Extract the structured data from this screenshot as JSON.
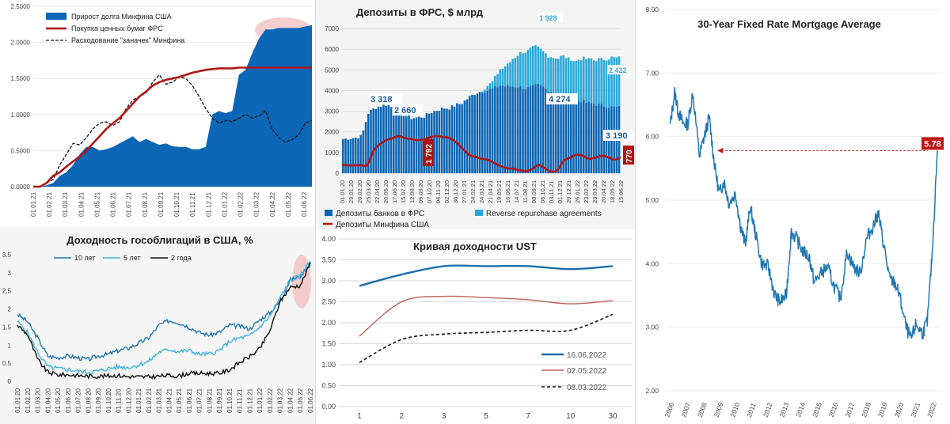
{
  "colors": {
    "blue_dark": "#0b66b5",
    "red": "#b01515",
    "light_blue": "#29a8dc",
    "navy": "#1a5e96",
    "yield_10y": "#1f77b4",
    "yield_5y": "#3fb4df",
    "ust_now": "#1b6fa8",
    "ust_may": "#c0605a"
  },
  "chart_data": [
    {
      "id": "fed_debt",
      "type": "area",
      "title": "",
      "yticks": [
        "0.0000",
        "0.5000",
        "1.0000",
        "1.5000",
        "2.0000",
        "2.5000"
      ],
      "ylim": [
        0,
        2.5
      ],
      "xticks": [
        "01.01.21",
        "01.02.21",
        "01.03.21",
        "01.04.21",
        "01.05.21",
        "01.06.21",
        "01.07.21",
        "01.08.21",
        "01.09.21",
        "01.10.21",
        "01.11.21",
        "01.12.21",
        "01.01.22",
        "01.02.22",
        "01.03.22",
        "01.04.22",
        "01.05.22",
        "01.06.22"
      ],
      "legend": [
        "Прирост долга Минфина США",
        "Покупка ценных бумаг ФРС",
        "Расходование \"заначек\" Минфина"
      ],
      "series": [
        {
          "name": "Прирост долга Минфина США",
          "style": "area",
          "values": [
            0,
            0,
            0.02,
            0.05,
            0.15,
            0.2,
            0.3,
            0.45,
            0.55,
            0.55,
            0.5,
            0.52,
            0.55,
            0.6,
            0.65,
            0.7,
            0.62,
            0.66,
            0.62,
            0.58,
            0.6,
            0.56,
            0.55,
            0.55,
            0.52,
            0.52,
            0.55,
            1.0,
            1.05,
            1.02,
            1.05,
            1.55,
            1.62,
            1.85,
            2.05,
            2.18,
            2.18,
            2.2,
            2.2,
            2.2,
            2.2,
            2.22,
            2.24
          ]
        },
        {
          "name": "Покупка ценных бумаг ФРС",
          "style": "line",
          "values": [
            0,
            0,
            0.05,
            0.15,
            0.2,
            0.28,
            0.35,
            0.42,
            0.5,
            0.6,
            0.7,
            0.8,
            0.88,
            0.95,
            1.05,
            1.15,
            1.25,
            1.32,
            1.4,
            1.45,
            1.48,
            1.5,
            1.52,
            1.55,
            1.58,
            1.6,
            1.62,
            1.63,
            1.64,
            1.64,
            1.64,
            1.65,
            1.65,
            1.65,
            1.65,
            1.65,
            1.65,
            1.65,
            1.65,
            1.65,
            1.65,
            1.65,
            1.65
          ]
        },
        {
          "name": "Расходование \"заначек\" Минфина",
          "style": "dashed",
          "values": [
            0,
            0,
            0.05,
            0.1,
            0.3,
            0.45,
            0.6,
            0.58,
            0.68,
            0.8,
            0.88,
            0.9,
            0.85,
            0.9,
            1.08,
            1.2,
            1.25,
            1.3,
            1.45,
            1.55,
            1.42,
            1.45,
            1.52,
            1.5,
            1.4,
            1.25,
            1.08,
            0.95,
            0.88,
            0.92,
            0.9,
            0.95,
            1.0,
            0.95,
            0.98,
            1.05,
            0.8,
            0.68,
            0.62,
            0.65,
            0.72,
            0.88,
            0.92
          ]
        }
      ]
    },
    {
      "id": "fed_deposits",
      "type": "bar",
      "title": "Депозиты в ФРС, $ млрд",
      "yticks": [
        "0",
        "1000",
        "2000",
        "3000",
        "4000",
        "5000",
        "6000",
        "7000"
      ],
      "ylim": [
        0,
        7000
      ],
      "xticks": [
        "01.01.20",
        "29.01.20",
        "26.02.20",
        "25.03.20",
        "22.04.20",
        "20.05.20",
        "17.06.20",
        "15.07.20",
        "12.08.20",
        "09.09.20",
        "07.10.20",
        "04.11.20",
        "02.12.20",
        "30.12.20",
        "27.01.21",
        "24.02.21",
        "24.03.21",
        "21.04.21",
        "19.05.21",
        "16.06.21",
        "14.07.21",
        "11.08.21",
        "08.09.21",
        "06.10.21",
        "03.11.21",
        "01.12.21",
        "29.12.21",
        "26.01.22",
        "23.02.22",
        "23.03.22",
        "20.04.22",
        "18.05.22",
        "15.06.22"
      ],
      "labels": {
        "bank_early": "3 318",
        "bank_mid": "2 660",
        "bank_late": "4 274",
        "rrp_peak": "1 928",
        "rrp_last": "2 422",
        "bank_last": "3 190",
        "tga_mid": "1 792",
        "tga_last": "770"
      },
      "legend": [
        "Депозиты банков в ФРС",
        "Reverse repurchase agreements",
        "Депозиты Минфина США"
      ],
      "series": [
        {
          "name": "Депозиты банков в ФРС",
          "values": [
            1650,
            1700,
            1720,
            1800,
            2900,
            3150,
            3250,
            3318,
            3150,
            2950,
            2780,
            2660,
            2700,
            2750,
            2950,
            3050,
            3150,
            3150,
            3300,
            3400,
            3650,
            3850,
            3950,
            4000,
            4100,
            4250,
            4200,
            4200,
            4200,
            4100,
            4150,
            4274,
            4150,
            3950,
            3800,
            3850,
            3700,
            3450,
            3500,
            3400,
            3350,
            3300,
            3250,
            3200,
            3190
          ]
        },
        {
          "name": "Reverse repurchase agreements",
          "values": [
            0,
            0,
            0,
            0,
            0,
            0,
            0,
            0,
            0,
            0,
            0,
            0,
            0,
            0,
            0,
            0,
            0,
            0,
            0,
            0,
            0,
            10,
            50,
            200,
            400,
            750,
            1000,
            1300,
            1600,
            1750,
            1928,
            1800,
            1700,
            1700,
            1750,
            1800,
            1850,
            1950,
            2050,
            2100,
            2150,
            2200,
            2300,
            2400,
            2422
          ]
        },
        {
          "name": "Депозиты Минфина США",
          "values": [
            400,
            380,
            380,
            390,
            400,
            1100,
            1400,
            1600,
            1700,
            1792,
            1700,
            1650,
            1600,
            1650,
            1750,
            1800,
            1750,
            1700,
            1500,
            1200,
            900,
            800,
            700,
            650,
            500,
            350,
            250,
            220,
            150,
            100,
            200,
            400,
            250,
            80,
            150,
            600,
            750,
            900,
            850,
            700,
            750,
            850,
            780,
            650,
            770
          ]
        }
      ]
    },
    {
      "id": "ust_yields",
      "type": "line",
      "title": "Доходность гособлигаций в США, %",
      "yticks": [
        "0",
        "0.5",
        "1",
        "1.5",
        "2",
        "2.5",
        "3",
        "3.5"
      ],
      "ylim": [
        0,
        3.5
      ],
      "xticks": [
        "01.01.20",
        "01.02.20",
        "01.03.20",
        "01.04.20",
        "01.05.20",
        "01.06.20",
        "01.07.20",
        "01.08.20",
        "01.09.20",
        "01.10.20",
        "01.11.20",
        "01.12.20",
        "01.01.21",
        "01.02.21",
        "01.03.21",
        "01.04.21",
        "01.05.21",
        "01.06.21",
        "01.07.21",
        "01.08.21",
        "01.09.21",
        "01.10.21",
        "01.11.21",
        "01.12.21",
        "01.01.22",
        "01.02.22",
        "01.03.22",
        "01.04.22",
        "01.05.22",
        "01.06.22"
      ],
      "legend": [
        "10 лет",
        "5 лет",
        "2 года"
      ],
      "series": [
        {
          "name": "10 лет",
          "values": [
            1.85,
            1.65,
            1.2,
            0.7,
            0.65,
            0.7,
            0.65,
            0.6,
            0.7,
            0.75,
            0.85,
            0.92,
            1.05,
            1.2,
            1.55,
            1.68,
            1.62,
            1.5,
            1.35,
            1.28,
            1.35,
            1.55,
            1.52,
            1.45,
            1.7,
            1.9,
            2.2,
            2.8,
            2.9,
            3.3
          ]
        },
        {
          "name": "5 лет",
          "values": [
            1.65,
            1.35,
            0.8,
            0.4,
            0.35,
            0.32,
            0.28,
            0.25,
            0.28,
            0.35,
            0.4,
            0.38,
            0.45,
            0.55,
            0.8,
            0.88,
            0.82,
            0.85,
            0.75,
            0.75,
            0.85,
            1.1,
            1.2,
            1.25,
            1.5,
            1.8,
            2.3,
            2.8,
            2.9,
            3.35
          ]
        },
        {
          "name": "2 года",
          "values": [
            1.55,
            1.3,
            0.6,
            0.25,
            0.18,
            0.18,
            0.16,
            0.14,
            0.14,
            0.15,
            0.16,
            0.13,
            0.12,
            0.12,
            0.14,
            0.16,
            0.15,
            0.22,
            0.22,
            0.22,
            0.22,
            0.32,
            0.52,
            0.68,
            0.9,
            1.4,
            2.2,
            2.6,
            2.65,
            3.25
          ]
        }
      ]
    },
    {
      "id": "ust_curve",
      "type": "line",
      "title": "Кривая доходности UST",
      "categories": [
        "1",
        "2",
        "3",
        "5",
        "7",
        "10",
        "30"
      ],
      "yticks": [
        "0.00",
        "0.50",
        "1.00",
        "1.50",
        "2.00",
        "2.50",
        "3.00",
        "3.50",
        "4.00"
      ],
      "ylim": [
        0,
        4
      ],
      "series": [
        {
          "name": "16.06.2022",
          "values": [
            2.88,
            3.15,
            3.35,
            3.35,
            3.35,
            3.28,
            3.35
          ]
        },
        {
          "name": "02.05.2022",
          "values": [
            1.68,
            2.5,
            2.63,
            2.6,
            2.55,
            2.45,
            2.53
          ]
        },
        {
          "name": "08.03.2022",
          "values": [
            1.05,
            1.6,
            1.73,
            1.77,
            1.82,
            1.82,
            2.2
          ]
        }
      ]
    },
    {
      "id": "mortgage",
      "type": "line",
      "title": "30-Year Fixed Rate Mortgage Average",
      "yticks": [
        "2.00",
        "3.00",
        "4.00",
        "5.00",
        "6.00",
        "7.00",
        "8.00"
      ],
      "ylim": [
        2,
        8
      ],
      "xticks": [
        "2006",
        "2007",
        "2008",
        "2009",
        "2010",
        "2011",
        "2012",
        "2013",
        "2014",
        "2015",
        "2016",
        "2017",
        "2018",
        "2019",
        "2020",
        "2021",
        "2022"
      ],
      "current_label": "5.78",
      "series": [
        {
          "name": "30-Year Fixed Rate Mortgage Average",
          "x": [
            2006.2,
            2006.5,
            2006.7,
            2007.0,
            2007.3,
            2007.6,
            2008.0,
            2008.3,
            2008.6,
            2008.9,
            2009.2,
            2009.5,
            2009.8,
            2010.2,
            2010.5,
            2010.8,
            2011.1,
            2011.4,
            2011.8,
            2012.2,
            2012.6,
            2012.9,
            2013.3,
            2013.6,
            2013.9,
            2014.3,
            2014.7,
            2015.0,
            2015.4,
            2015.8,
            2016.2,
            2016.6,
            2017.0,
            2017.4,
            2017.8,
            2018.2,
            2018.6,
            2018.9,
            2019.2,
            2019.6,
            2019.9,
            2020.2,
            2020.6,
            2020.9,
            2021.2,
            2021.6,
            2021.9,
            2022.2,
            2022.5
          ],
          "values": [
            6.15,
            6.7,
            6.4,
            6.2,
            6.2,
            6.7,
            5.7,
            6.0,
            6.3,
            5.6,
            5.1,
            5.3,
            4.95,
            5.1,
            4.6,
            4.3,
            4.9,
            4.5,
            4.0,
            3.95,
            3.5,
            3.4,
            3.5,
            4.5,
            4.4,
            4.2,
            4.1,
            3.7,
            3.85,
            3.95,
            3.65,
            3.45,
            4.2,
            3.95,
            3.85,
            4.4,
            4.6,
            4.8,
            4.35,
            3.75,
            3.7,
            3.5,
            3.0,
            2.8,
            3.05,
            2.9,
            3.1,
            4.2,
            5.78
          ]
        }
      ]
    }
  ]
}
